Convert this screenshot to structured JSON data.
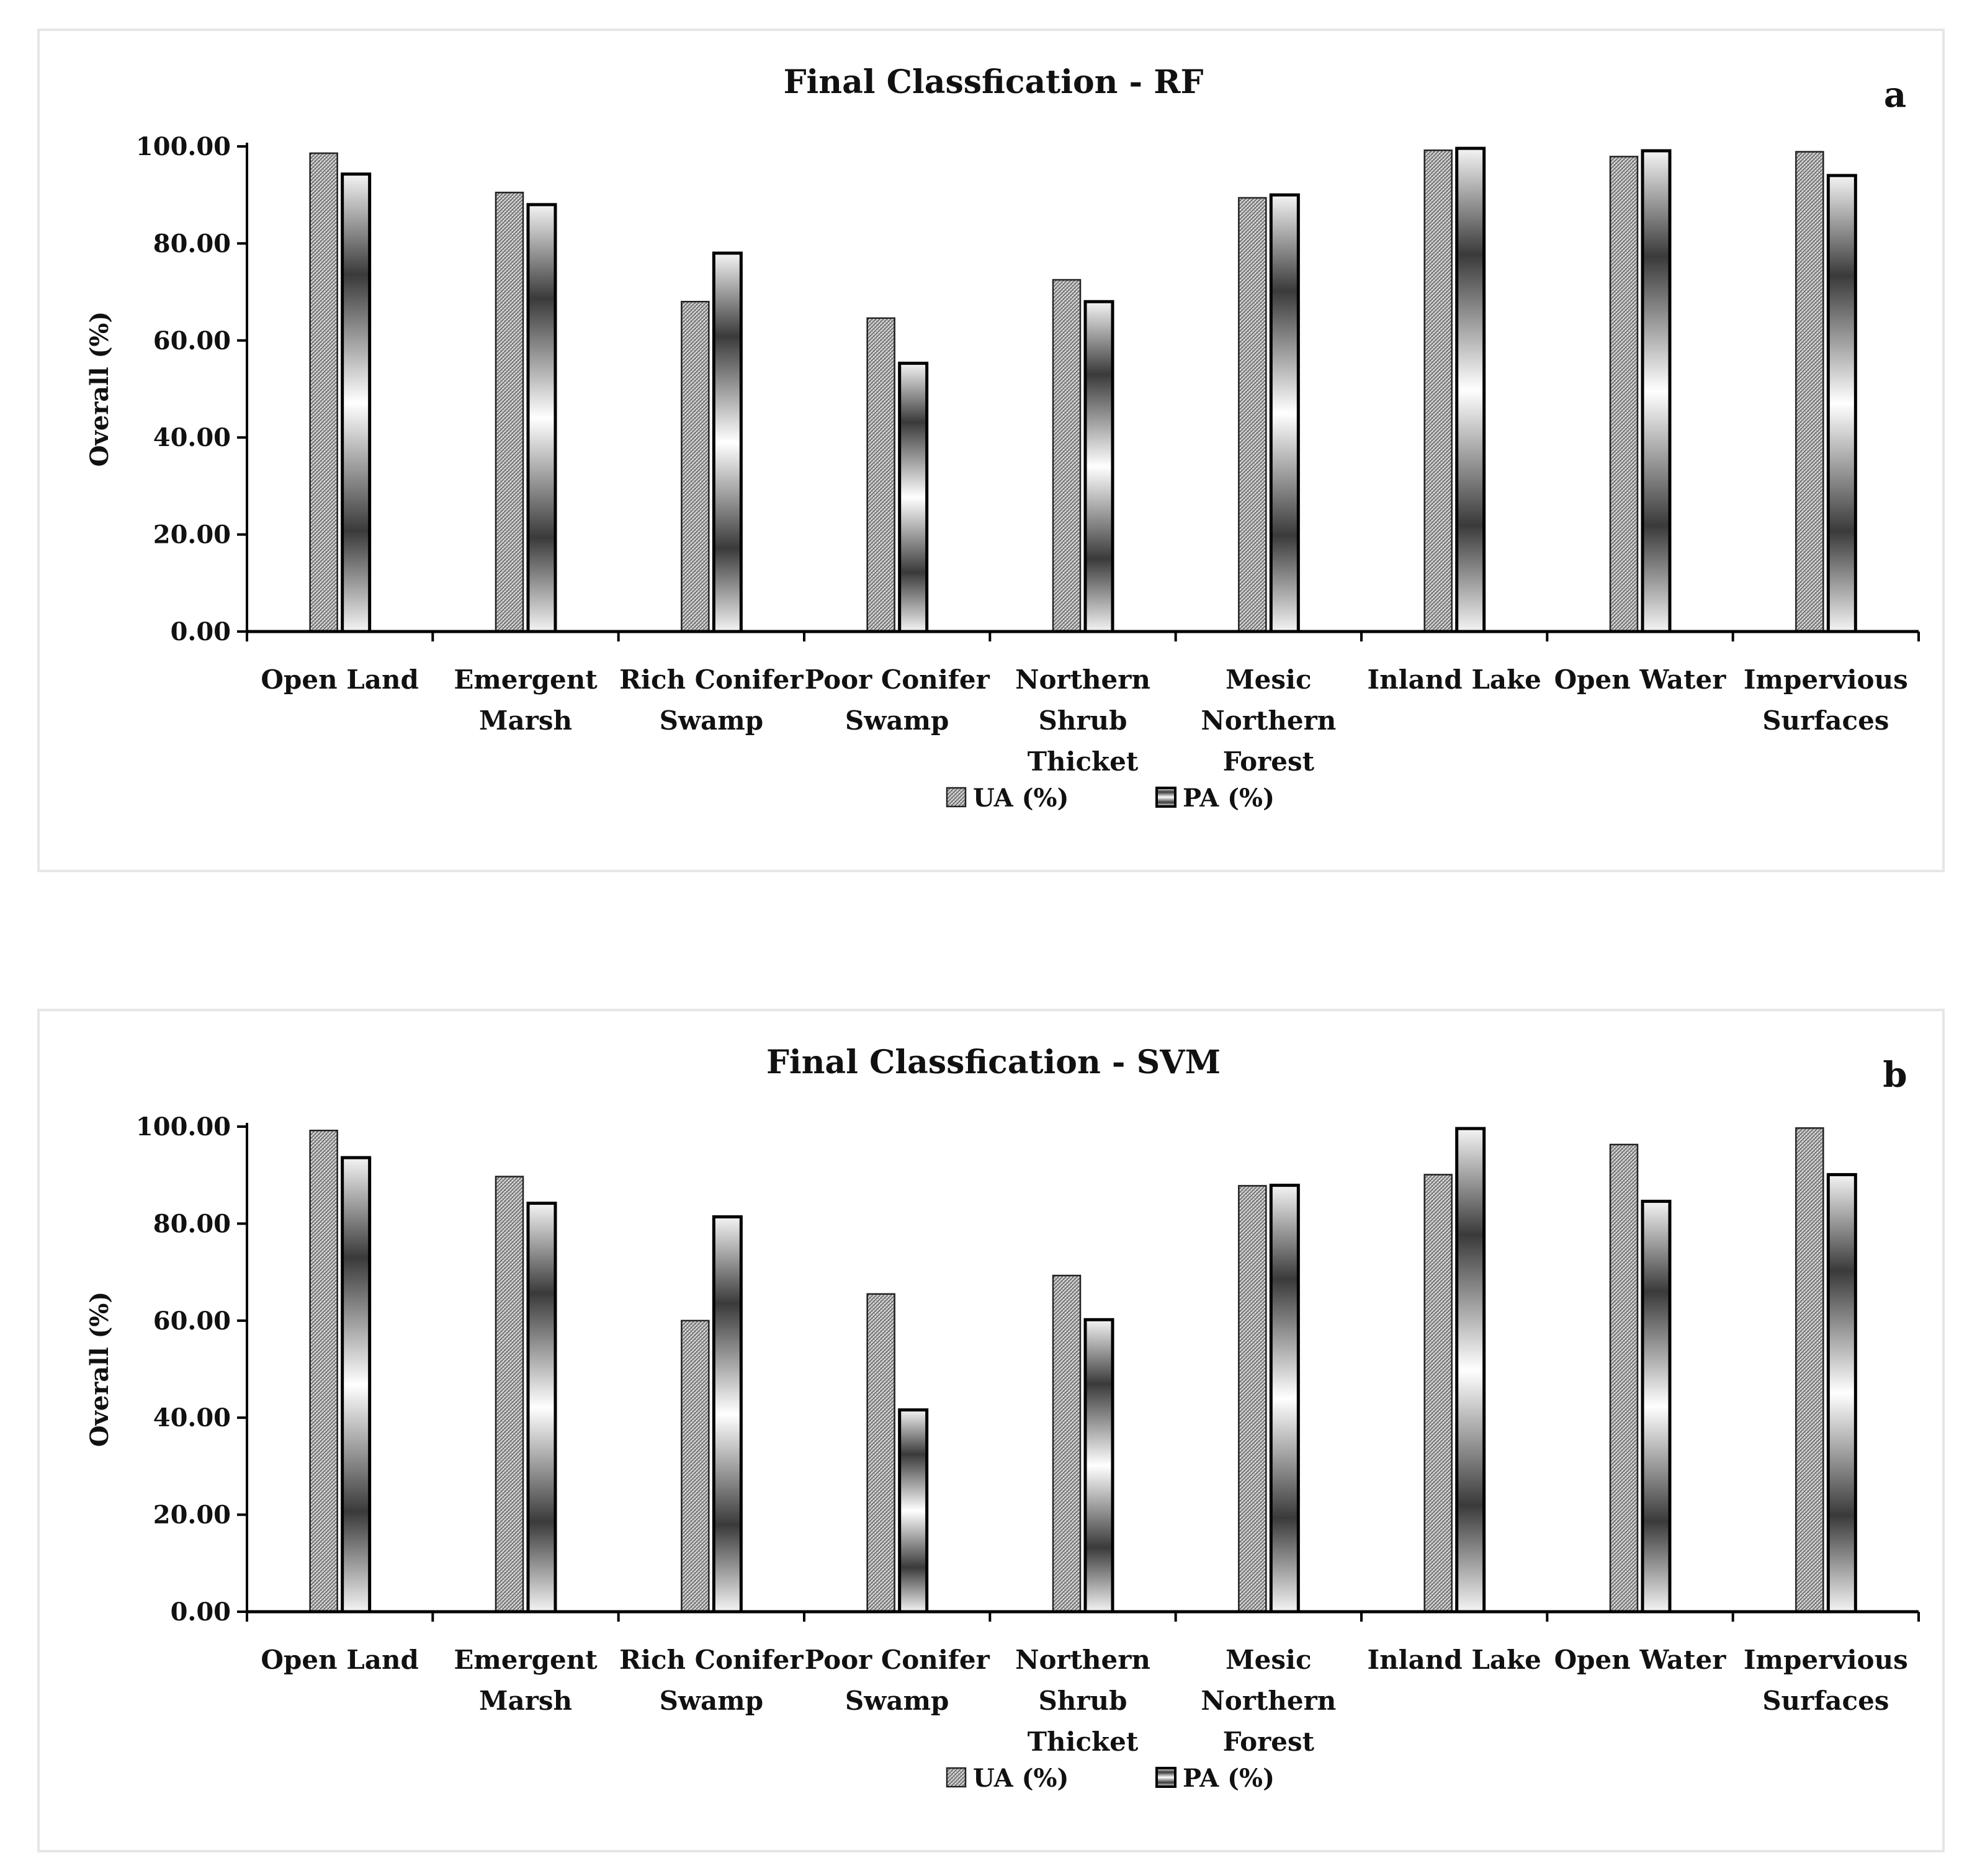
{
  "chart_data": [
    {
      "type": "bar",
      "id": "a",
      "title": "Final Classfication - RF",
      "panel_label": "a",
      "ylabel": "Overall (%)",
      "xlabel": "",
      "ylim": [
        0,
        100
      ],
      "yticks": [
        "0.00",
        "20.00",
        "40.00",
        "60.00",
        "80.00",
        "100.00"
      ],
      "categories": [
        [
          "Open Land"
        ],
        [
          "Emergent",
          "Marsh"
        ],
        [
          "Rich Conifer",
          "Swamp"
        ],
        [
          "Poor Conifer",
          "Swamp"
        ],
        [
          "Northern",
          "Shrub",
          "Thicket"
        ],
        [
          "Mesic",
          "Northern",
          "Forest"
        ],
        [
          "Inland Lake"
        ],
        [
          "Open Water"
        ],
        [
          "Impervious",
          "Surfaces"
        ]
      ],
      "series": [
        {
          "name": "UA (%)",
          "values": [
            98.6,
            90.5,
            68.0,
            64.6,
            72.5,
            89.4,
            99.2,
            97.9,
            98.9
          ]
        },
        {
          "name": "PA (%)",
          "values": [
            94.3,
            88.0,
            78.0,
            55.3,
            68.0,
            90.0,
            99.6,
            99.1,
            94.0
          ]
        }
      ],
      "legend_position": "bottom-center"
    },
    {
      "type": "bar",
      "id": "b",
      "title": "Final Classfication - SVM",
      "panel_label": "b",
      "ylabel": "Overall (%)",
      "xlabel": "",
      "ylim": [
        0,
        100
      ],
      "yticks": [
        "0.00",
        "20.00",
        "40.00",
        "60.00",
        "80.00",
        "100.00"
      ],
      "categories": [
        [
          "Open Land"
        ],
        [
          "Emergent",
          "Marsh"
        ],
        [
          "Rich Conifer",
          "Swamp"
        ],
        [
          "Poor Conifer",
          "Swamp"
        ],
        [
          "Northern",
          "Shrub",
          "Thicket"
        ],
        [
          "Mesic",
          "Northern",
          "Forest"
        ],
        [
          "Inland Lake"
        ],
        [
          "Open Water"
        ],
        [
          "Impervious",
          "Surfaces"
        ]
      ],
      "series": [
        {
          "name": "UA (%)",
          "values": [
            99.2,
            89.7,
            60.0,
            65.5,
            69.3,
            87.8,
            90.1,
            96.3,
            99.7
          ]
        },
        {
          "name": "PA (%)",
          "values": [
            93.6,
            84.2,
            81.4,
            41.6,
            60.2,
            87.9,
            99.6,
            84.6,
            90.1
          ]
        }
      ],
      "legend_position": "bottom-center"
    }
  ]
}
